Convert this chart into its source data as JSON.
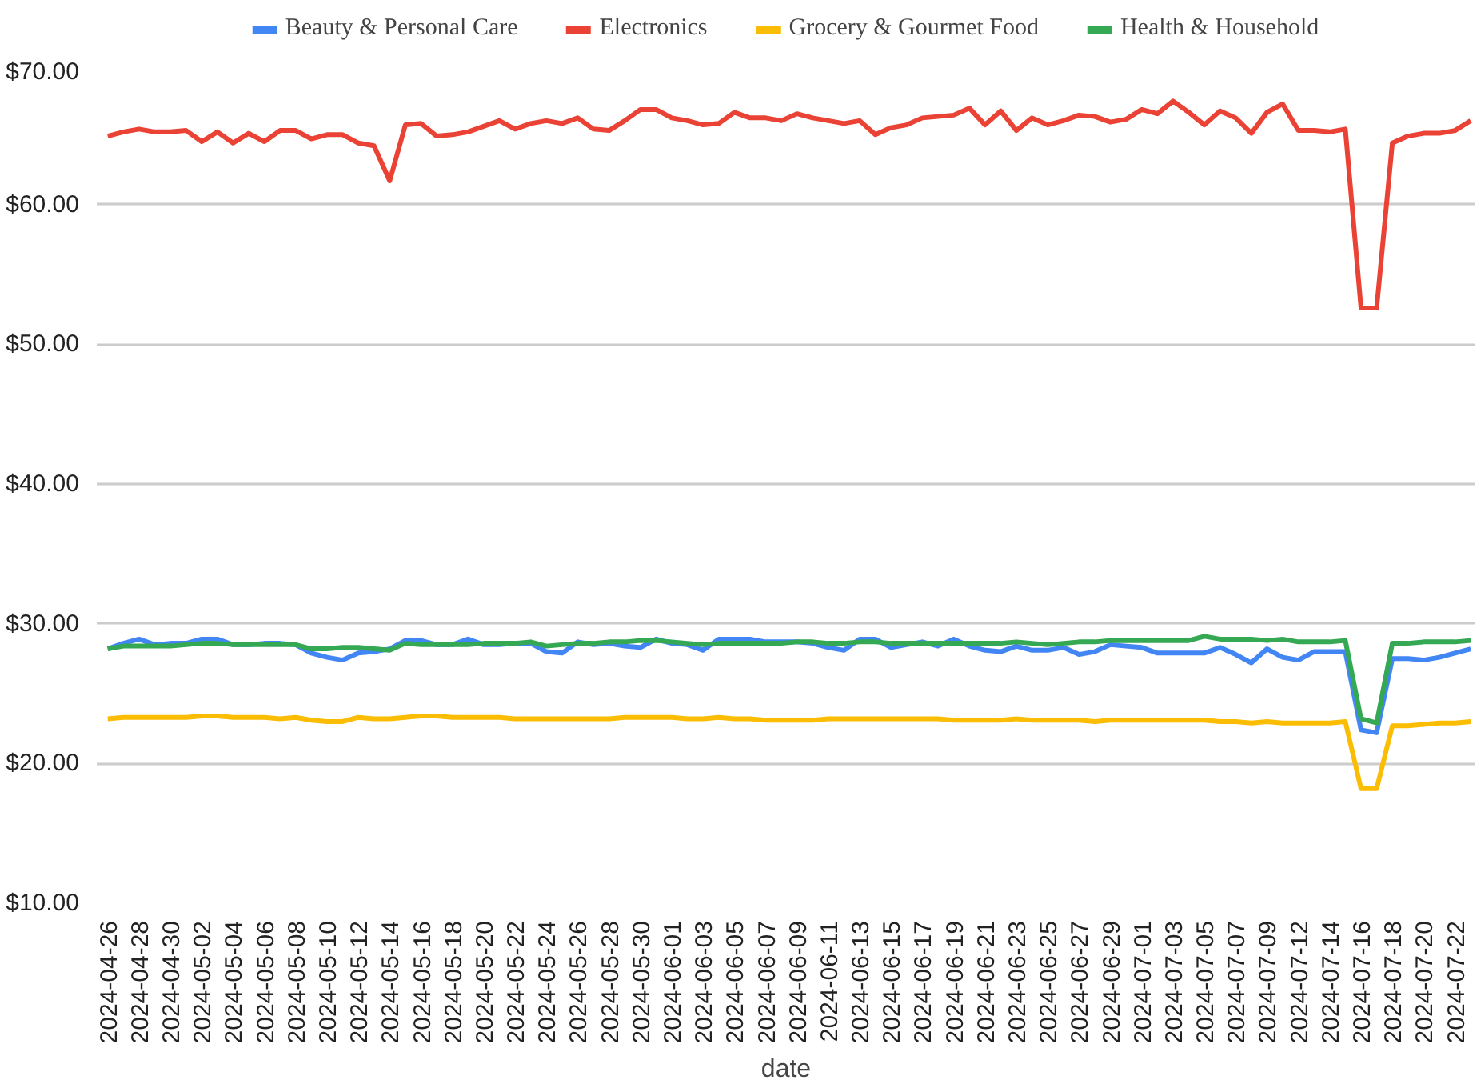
{
  "chart_data": {
    "type": "line",
    "xlabel": "date",
    "categories": [
      "2024-04-26",
      null,
      "2024-04-28",
      null,
      "2024-04-30",
      null,
      "2024-05-02",
      null,
      "2024-05-04",
      null,
      "2024-05-06",
      null,
      "2024-05-08",
      null,
      "2024-05-10",
      null,
      "2024-05-12",
      null,
      "2024-05-14",
      null,
      "2024-05-16",
      null,
      "2024-05-18",
      null,
      "2024-05-20",
      null,
      "2024-05-22",
      null,
      "2024-05-24",
      null,
      "2024-05-26",
      null,
      "2024-05-28",
      null,
      "2024-05-30",
      null,
      "2024-06-01",
      null,
      "2024-06-03",
      null,
      "2024-06-05",
      null,
      "2024-06-07",
      null,
      "2024-06-09",
      null,
      "2024-06-11",
      null,
      "2024-06-13",
      null,
      "2024-06-15",
      null,
      "2024-06-17",
      null,
      "2024-06-19",
      null,
      "2024-06-21",
      null,
      "2024-06-23",
      null,
      "2024-06-25",
      null,
      "2024-06-27",
      null,
      "2024-06-29",
      null,
      "2024-07-01",
      null,
      "2024-07-03",
      null,
      "2024-07-05",
      null,
      "2024-07-07",
      null,
      "2024-07-09",
      null,
      "2024-07-12",
      null,
      "2024-07-14",
      null,
      "2024-07-16",
      null,
      "2024-07-18",
      null,
      "2024-07-20",
      null,
      "2024-07-22",
      null
    ],
    "series": [
      {
        "name": "Beauty & Personal Care",
        "color": "#4285f4",
        "values": [
          28.2,
          28.6,
          28.9,
          28.5,
          28.6,
          28.6,
          28.9,
          28.9,
          28.5,
          28.5,
          28.6,
          28.6,
          28.5,
          27.9,
          27.6,
          27.4,
          27.9,
          28.0,
          28.2,
          28.8,
          28.8,
          28.5,
          28.5,
          28.9,
          28.5,
          28.5,
          28.6,
          28.6,
          28.0,
          27.9,
          28.7,
          28.5,
          28.6,
          28.4,
          28.3,
          28.9,
          28.6,
          28.5,
          28.1,
          28.9,
          28.9,
          28.9,
          28.7,
          28.7,
          28.7,
          28.6,
          28.3,
          28.1,
          28.9,
          28.9,
          28.3,
          28.5,
          28.7,
          28.4,
          28.9,
          28.4,
          28.1,
          28.0,
          28.4,
          28.1,
          28.1,
          28.3,
          27.8,
          28.0,
          28.5,
          28.4,
          28.3,
          27.9,
          27.9,
          27.9,
          27.9,
          28.3,
          27.8,
          27.2,
          28.2,
          27.6,
          27.4,
          28.0,
          28.0,
          28.0,
          22.4,
          22.2,
          27.5,
          27.5,
          27.4,
          27.6,
          27.9,
          28.2
        ]
      },
      {
        "name": "Electronics",
        "color": "#ea4335",
        "values": [
          64.9,
          65.2,
          65.4,
          65.2,
          65.2,
          65.3,
          64.5,
          65.2,
          64.4,
          65.1,
          64.5,
          65.3,
          65.3,
          64.7,
          65.0,
          65.0,
          64.4,
          64.2,
          61.7,
          65.7,
          65.8,
          64.9,
          65.0,
          65.2,
          65.6,
          66.0,
          65.4,
          65.8,
          66.0,
          65.8,
          66.2,
          65.4,
          65.3,
          66.0,
          66.8,
          66.8,
          66.2,
          66.0,
          65.7,
          65.8,
          66.6,
          66.2,
          66.2,
          66.0,
          66.5,
          66.2,
          66.0,
          65.8,
          66.0,
          65.0,
          65.5,
          65.7,
          66.2,
          66.3,
          66.4,
          66.9,
          65.7,
          66.7,
          65.3,
          66.2,
          65.7,
          66.0,
          66.4,
          66.3,
          65.9,
          66.1,
          66.8,
          66.5,
          67.4,
          66.6,
          65.7,
          66.7,
          66.2,
          65.1,
          66.6,
          67.2,
          65.3,
          65.3,
          65.2,
          65.4,
          52.6,
          52.6,
          64.4,
          64.9,
          65.1,
          65.1,
          65.3,
          66.0
        ]
      },
      {
        "name": "Grocery & Gourmet Food",
        "color": "#fbbc04",
        "values": [
          23.2,
          23.3,
          23.3,
          23.3,
          23.3,
          23.3,
          23.4,
          23.4,
          23.3,
          23.3,
          23.3,
          23.2,
          23.3,
          23.1,
          23.0,
          23.0,
          23.3,
          23.2,
          23.2,
          23.3,
          23.4,
          23.4,
          23.3,
          23.3,
          23.3,
          23.3,
          23.2,
          23.2,
          23.2,
          23.2,
          23.2,
          23.2,
          23.2,
          23.3,
          23.3,
          23.3,
          23.3,
          23.2,
          23.2,
          23.3,
          23.2,
          23.2,
          23.1,
          23.1,
          23.1,
          23.1,
          23.2,
          23.2,
          23.2,
          23.2,
          23.2,
          23.2,
          23.2,
          23.2,
          23.1,
          23.1,
          23.1,
          23.1,
          23.2,
          23.1,
          23.1,
          23.1,
          23.1,
          23.0,
          23.1,
          23.1,
          23.1,
          23.1,
          23.1,
          23.1,
          23.1,
          23.0,
          23.0,
          22.9,
          23.0,
          22.9,
          22.9,
          22.9,
          22.9,
          23.0,
          18.2,
          18.2,
          22.7,
          22.7,
          22.8,
          22.9,
          22.9,
          23.0
        ]
      },
      {
        "name": "Health & Household",
        "color": "#34a853",
        "values": [
          28.2,
          28.4,
          28.4,
          28.4,
          28.4,
          28.5,
          28.6,
          28.6,
          28.5,
          28.5,
          28.5,
          28.5,
          28.5,
          28.2,
          28.2,
          28.3,
          28.3,
          28.2,
          28.1,
          28.6,
          28.5,
          28.5,
          28.5,
          28.5,
          28.6,
          28.6,
          28.6,
          28.7,
          28.4,
          28.5,
          28.6,
          28.6,
          28.7,
          28.7,
          28.8,
          28.8,
          28.7,
          28.6,
          28.5,
          28.6,
          28.6,
          28.6,
          28.6,
          28.6,
          28.7,
          28.7,
          28.6,
          28.6,
          28.7,
          28.7,
          28.6,
          28.6,
          28.6,
          28.6,
          28.6,
          28.6,
          28.6,
          28.6,
          28.7,
          28.6,
          28.5,
          28.6,
          28.7,
          28.7,
          28.8,
          28.8,
          28.8,
          28.8,
          28.8,
          28.8,
          29.1,
          28.9,
          28.9,
          28.9,
          28.8,
          28.9,
          28.7,
          28.7,
          28.7,
          28.8,
          23.2,
          22.9,
          28.6,
          28.6,
          28.7,
          28.7,
          28.7,
          28.8
        ]
      }
    ],
    "ylim": [
      10,
      70
    ],
    "yticks": [
      {
        "value": 10,
        "label": "$10.00"
      },
      {
        "value": 20,
        "label": "$20.00"
      },
      {
        "value": 30,
        "label": "$30.00"
      },
      {
        "value": 40,
        "label": "$40.00"
      },
      {
        "value": 50,
        "label": "$50.00"
      },
      {
        "value": 60,
        "label": "$60.00"
      },
      {
        "value": 70,
        "label": "$70.00"
      }
    ],
    "grid": "y",
    "legend": "top",
    "marker": "none",
    "line_style": "solid"
  }
}
